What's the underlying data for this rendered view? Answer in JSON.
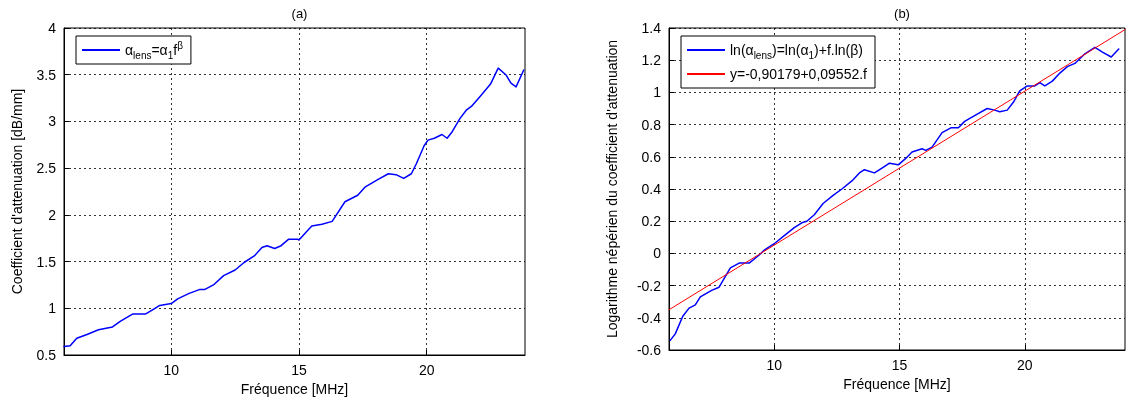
{
  "chart_data": [
    {
      "type": "line",
      "title": "(a)",
      "xlabel": "Fréquence [MHz]",
      "ylabel": "Coefficient d'attenuation [dB/mm]",
      "xlim": [
        5.8,
        23.85
      ],
      "xticks": [
        10,
        15,
        20
      ],
      "ylim": [
        0.5,
        4
      ],
      "yticks": [
        0.5,
        1,
        1.5,
        2,
        2.5,
        3,
        3.5,
        4
      ],
      "grid": true,
      "legend": "top left",
      "marker": "none",
      "line_style": "solid",
      "series": [
        {
          "name": "α$_{lens}$=α$_{1}$f$^{β}$",
          "color": "#0000ff",
          "x": [
            5.8,
            6.04,
            6.3,
            6.7,
            7.15,
            7.7,
            8.0,
            8.5,
            9.0,
            9.25,
            9.55,
            10.0,
            10.25,
            10.7,
            11.1,
            11.3,
            11.65,
            12.05,
            12.5,
            12.85,
            13.25,
            13.55,
            13.75,
            14.05,
            14.3,
            14.6,
            14.95,
            15.0,
            15.5,
            15.9,
            16.3,
            16.8,
            17.3,
            17.6,
            18.1,
            18.5,
            18.8,
            19.1,
            19.4,
            19.6,
            19.9,
            20.05,
            20.3,
            20.6,
            20.8,
            21.0,
            21.3,
            21.55,
            21.75,
            22.1,
            22.5,
            22.8,
            23.1,
            23.3,
            23.5,
            23.8
          ],
          "values": [
            0.59,
            0.6,
            0.68,
            0.72,
            0.77,
            0.8,
            0.86,
            0.94,
            0.94,
            0.98,
            1.03,
            1.05,
            1.1,
            1.16,
            1.2,
            1.2,
            1.25,
            1.35,
            1.41,
            1.49,
            1.56,
            1.65,
            1.67,
            1.64,
            1.67,
            1.74,
            1.74,
            1.73,
            1.88,
            1.9,
            1.93,
            2.14,
            2.21,
            2.3,
            2.38,
            2.44,
            2.43,
            2.39,
            2.44,
            2.55,
            2.74,
            2.8,
            2.82,
            2.86,
            2.82,
            2.89,
            3.03,
            3.12,
            3.16,
            3.27,
            3.4,
            3.57,
            3.5,
            3.41,
            3.37,
            3.55
          ]
        }
      ]
    },
    {
      "type": "line",
      "title": "(b)",
      "xlabel": "Fréquence [MHz]",
      "ylabel": "Logarithme népérien du coefficient d'attenuation",
      "xlim": [
        5.8,
        24
      ],
      "xticks": [
        10,
        15,
        20
      ],
      "ylim": [
        -0.6,
        1.4
      ],
      "yticks": [
        -0.6,
        -0.4,
        -0.2,
        0,
        0.2,
        0.4,
        0.6,
        0.8,
        1,
        1.2,
        1.4
      ],
      "grid": true,
      "legend": "top left",
      "marker": "none",
      "line_style": "solid",
      "series": [
        {
          "name": "ln(α$_{lens}$)=ln(α$_{1}$)+f.ln(β)",
          "color": "#0000ff",
          "x": [
            5.85,
            6.05,
            6.35,
            6.6,
            6.85,
            7.05,
            7.5,
            7.8,
            8.25,
            8.6,
            9.0,
            9.4,
            9.6,
            10.0,
            10.4,
            10.8,
            11.1,
            11.3,
            11.6,
            11.95,
            12.35,
            12.7,
            13.1,
            13.4,
            13.6,
            14.0,
            14.3,
            14.6,
            14.95,
            15.25,
            15.5,
            15.9,
            16.05,
            16.3,
            16.7,
            17.05,
            17.35,
            17.6,
            18.05,
            18.5,
            18.8,
            19.0,
            19.3,
            19.55,
            19.8,
            20.1,
            20.4,
            20.6,
            20.8,
            21.1,
            21.4,
            21.7,
            22.0,
            22.4,
            22.8,
            23.1,
            23.45,
            23.75
          ],
          "values": [
            -0.54,
            -0.5,
            -0.39,
            -0.34,
            -0.32,
            -0.27,
            -0.23,
            -0.21,
            -0.09,
            -0.06,
            -0.06,
            -0.01,
            0.02,
            0.06,
            0.11,
            0.16,
            0.19,
            0.2,
            0.24,
            0.31,
            0.36,
            0.4,
            0.45,
            0.5,
            0.52,
            0.5,
            0.53,
            0.56,
            0.55,
            0.59,
            0.63,
            0.65,
            0.64,
            0.66,
            0.75,
            0.78,
            0.78,
            0.82,
            0.86,
            0.9,
            0.89,
            0.88,
            0.89,
            0.94,
            1.01,
            1.04,
            1.04,
            1.06,
            1.04,
            1.07,
            1.12,
            1.16,
            1.18,
            1.24,
            1.28,
            1.25,
            1.22,
            1.27
          ]
        },
        {
          "name": "y=-0,90179+0,09552.f",
          "color": "#ff0000",
          "x": [
            5.8,
            24
          ],
          "values": [
            -0.35,
            1.39
          ]
        }
      ]
    }
  ]
}
